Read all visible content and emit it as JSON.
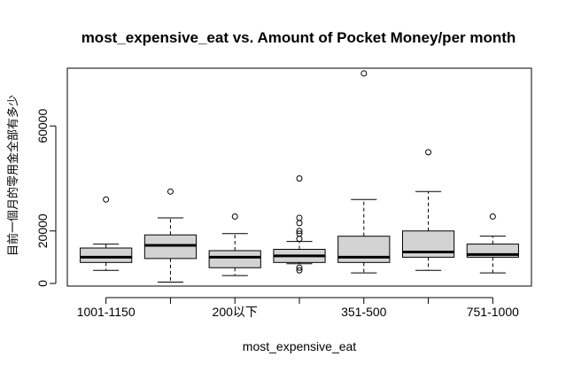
{
  "chart_data": {
    "type": "boxplot",
    "title": "most_expensive_eat vs. Amount of Pocket Money/per month",
    "xlabel": "most_expensive_eat",
    "ylabel": "目前一個月的零用金全部有多少",
    "ylim": [
      -1000,
      82000
    ],
    "y_ticks": [
      0,
      20000,
      60000
    ],
    "x_tick_labels": [
      "1001-1150",
      "200以下",
      "351-500",
      "751-1000"
    ],
    "x_tick_label_positions": [
      1,
      3,
      5,
      7
    ],
    "box_fill": "#d3d3d3",
    "grid": false,
    "categories": [
      "1001-1150",
      "",
      "200以下",
      "",
      "351-500",
      "",
      "751-1000"
    ],
    "boxes": [
      {
        "whisker_low": 5000,
        "q1": 8000,
        "median": 10000,
        "q3": 13500,
        "whisker_high": 15000,
        "outliers": [
          32000
        ]
      },
      {
        "whisker_low": 500,
        "q1": 9500,
        "median": 14500,
        "q3": 18500,
        "whisker_high": 25000,
        "outliers": [
          35000
        ]
      },
      {
        "whisker_low": 3000,
        "q1": 6000,
        "median": 10000,
        "q3": 12500,
        "whisker_high": 19000,
        "outliers": [
          25500
        ]
      },
      {
        "whisker_low": 7500,
        "q1": 8000,
        "median": 10500,
        "q3": 13000,
        "whisker_high": 16000,
        "outliers": [
          5000,
          6000,
          17000,
          19000,
          20000,
          23000,
          25000,
          40000
        ]
      },
      {
        "whisker_low": 4000,
        "q1": 8000,
        "median": 10000,
        "q3": 18000,
        "whisker_high": 32000,
        "outliers": [
          80000
        ]
      },
      {
        "whisker_low": 5000,
        "q1": 10000,
        "median": 12000,
        "q3": 20000,
        "whisker_high": 35000,
        "outliers": [
          50000
        ]
      },
      {
        "whisker_low": 4000,
        "q1": 10000,
        "median": 11000,
        "q3": 15000,
        "whisker_high": 18000,
        "outliers": [
          25500
        ]
      }
    ]
  }
}
